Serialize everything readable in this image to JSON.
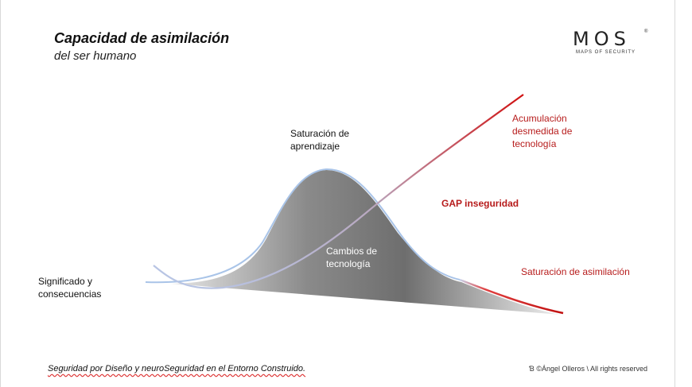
{
  "header": {
    "title": "Capacidad de asimilación",
    "subtitle": "del ser humano"
  },
  "logo": {
    "mark": "MOS",
    "tagline": "MAPS OF SECURITY",
    "registered": "®"
  },
  "labels": {
    "significado": "Significado y consecuencias",
    "saturacion_aprendizaje": "Saturación de aprendizaje",
    "cambios_tecnologia": "Cambios de tecnología",
    "acumulacion": "Acumulación desmedida de tecnología",
    "gap": "GAP inseguridad",
    "saturacion_asimilacion": "Saturación de asimilación"
  },
  "footer": {
    "caption": "Seguridad por Diseño y neuroSeguridad en el Entorno Construido.",
    "copyright": "Ɓ ©Ángel Olleros \\ All rights reserved"
  },
  "colors": {
    "accent_red": "#b71c1c",
    "curve_blue": "#a9c4e8",
    "fill_gray": "#7a7a7a"
  }
}
